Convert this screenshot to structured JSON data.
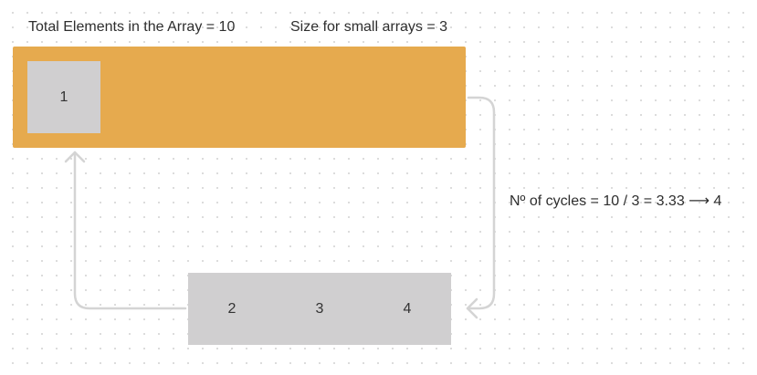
{
  "header": {
    "total_elements": "Total Elements in the Array = 10",
    "small_array_size": "Size for small arrays = 3"
  },
  "main_array": {
    "cells": [
      "1"
    ]
  },
  "small_array": {
    "cells": [
      "2",
      "3",
      "4"
    ]
  },
  "cycles_note": "Nº of cycles = 10 / 3 = 3.33 ⟶ 4",
  "colors": {
    "main_array": "#e6aa4e",
    "cell": "#d0cfd0",
    "arrow": "#d4d4d4"
  },
  "icons": [
    "arrow-down-right-connector-icon",
    "arrow-up-left-connector-icon"
  ]
}
